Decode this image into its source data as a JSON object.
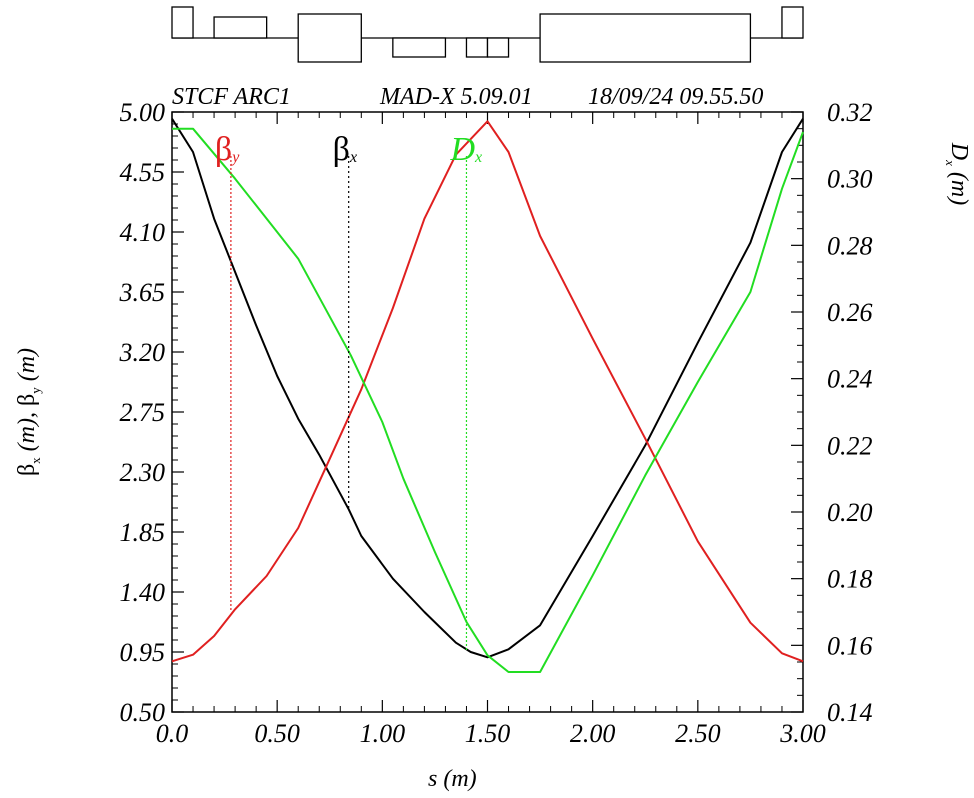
{
  "header": {
    "left": "STCF ARC1",
    "center": "MAD-X 5.09.01",
    "right": "18/09/24 09.55.50"
  },
  "chart_data": {
    "type": "line",
    "title": "STCF ARC1",
    "xlabel": "s (m)",
    "ylabel_left": "βx (m), βy (m)",
    "ylabel_right": "Dx (m)",
    "xlim": [
      0,
      3
    ],
    "ylim_left": [
      0.5,
      5.0
    ],
    "ylim_right": [
      0.14,
      0.32
    ],
    "x_ticks": [
      "0.0",
      "0.50",
      "1.00",
      "1.50",
      "2.00",
      "2.50",
      "3.00"
    ],
    "y_left_ticks": [
      "0.50",
      "0.95",
      "1.40",
      "1.85",
      "2.30",
      "2.75",
      "3.20",
      "3.65",
      "4.10",
      "4.55",
      "5.00"
    ],
    "y_right_ticks": [
      "0.14",
      "0.16",
      "0.18",
      "0.20",
      "0.22",
      "0.24",
      "0.26",
      "0.28",
      "0.30",
      "0.32"
    ],
    "grid": false,
    "legend": [
      {
        "symbol": "β",
        "sub": "y",
        "color": "#e02020",
        "marker_s": 0.28
      },
      {
        "symbol": "β",
        "sub": "x",
        "color": "#000000",
        "marker_s": 0.84
      },
      {
        "symbol": "D",
        "sub": "x",
        "color": "#22dd22",
        "marker_s": 1.4,
        "italic": true
      }
    ],
    "series": [
      {
        "name": "βx",
        "axis": "left",
        "color": "#000000",
        "x": [
          0,
          0.1,
          0.2,
          0.3,
          0.4,
          0.5,
          0.6,
          0.7,
          0.84,
          0.9,
          1.05,
          1.2,
          1.35,
          1.42,
          1.5,
          1.6,
          1.75,
          2.0,
          2.25,
          2.5,
          2.75,
          2.9,
          3.0
        ],
        "y": [
          4.95,
          4.7,
          4.2,
          3.8,
          3.4,
          3.02,
          2.7,
          2.43,
          2.02,
          1.82,
          1.5,
          1.25,
          1.02,
          0.95,
          0.91,
          0.97,
          1.15,
          1.82,
          2.5,
          3.27,
          4.02,
          4.7,
          4.95
        ]
      },
      {
        "name": "βy",
        "axis": "left",
        "color": "#e02020",
        "x": [
          0,
          0.1,
          0.2,
          0.3,
          0.45,
          0.6,
          0.75,
          0.9,
          1.05,
          1.2,
          1.35,
          1.5,
          1.6,
          1.75,
          2.0,
          2.25,
          2.5,
          2.75,
          2.9,
          3.0
        ],
        "y": [
          0.88,
          0.93,
          1.07,
          1.27,
          1.52,
          1.88,
          2.4,
          2.92,
          3.53,
          4.2,
          4.68,
          4.93,
          4.7,
          4.07,
          3.3,
          2.55,
          1.78,
          1.17,
          0.94,
          0.88
        ]
      },
      {
        "name": "Dx",
        "axis": "right",
        "color": "#22dd22",
        "x": [
          0,
          0.1,
          0.3,
          0.6,
          0.85,
          1.0,
          1.1,
          1.25,
          1.4,
          1.5,
          1.6,
          1.75,
          2.0,
          2.25,
          2.5,
          2.75,
          2.9,
          3.0
        ],
        "y": [
          0.315,
          0.315,
          0.3,
          0.276,
          0.247,
          0.227,
          0.21,
          0.188,
          0.167,
          0.157,
          0.152,
          0.152,
          0.181,
          0.211,
          0.239,
          0.266,
          0.297,
          0.314
        ]
      }
    ]
  },
  "lattice": {
    "elements": [
      {
        "type": "bend",
        "s0": 0.0,
        "s1": 0.1
      },
      {
        "type": "quad",
        "s0": 0.2,
        "s1": 0.45
      },
      {
        "type": "bend",
        "s0": 0.6,
        "s1": 0.9
      },
      {
        "type": "defquad",
        "s0": 1.05,
        "s1": 1.3
      },
      {
        "type": "defquad",
        "s0": 1.4,
        "s1": 1.5
      },
      {
        "type": "defquad",
        "s0": 1.5,
        "s1": 1.6
      },
      {
        "type": "bend",
        "s0": 1.75,
        "s1": 2.75
      },
      {
        "type": "bend",
        "s0": 2.9,
        "s1": 3.0
      }
    ]
  }
}
